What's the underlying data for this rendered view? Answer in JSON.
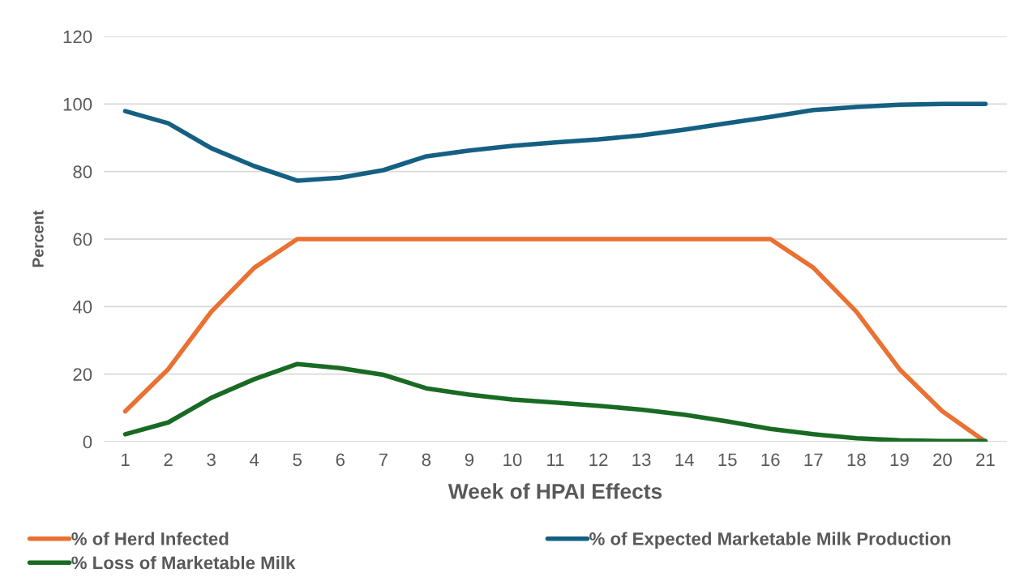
{
  "chart_data": {
    "type": "line",
    "xlabel": "Week of HPAI Effects",
    "ylabel": "Percent",
    "categories": [
      "1",
      "2",
      "3",
      "4",
      "5",
      "6",
      "7",
      "8",
      "9",
      "10",
      "11",
      "12",
      "13",
      "14",
      "15",
      "16",
      "17",
      "18",
      "19",
      "20",
      "21"
    ],
    "series": [
      {
        "name": "% of Herd Infected",
        "color": "#e97132",
        "values": [
          9,
          21.5,
          38.5,
          51.5,
          60,
          60,
          60,
          60,
          60,
          60,
          60,
          60,
          60,
          60,
          60,
          60,
          51.5,
          38.5,
          21.5,
          9,
          0
        ]
      },
      {
        "name": "% Loss of Marketable Milk",
        "color": "#196b24",
        "values": [
          2.2,
          5.7,
          13,
          18.5,
          23,
          21.8,
          19.8,
          15.8,
          13.9,
          12.5,
          11.6,
          10.6,
          9.5,
          8,
          6,
          3.8,
          2.2,
          1,
          0.4,
          0.2,
          0.2
        ]
      },
      {
        "name": "% of Expected Marketable Milk Production",
        "color": "#156082",
        "values": [
          97.9,
          94.3,
          86.9,
          81.6,
          77.3,
          78.2,
          80.4,
          84.5,
          86.2,
          87.6,
          88.6,
          89.5,
          90.7,
          92.4,
          94.3,
          96.2,
          98.2,
          99.1,
          99.8,
          100,
          100
        ]
      }
    ],
    "ylim": [
      0,
      120
    ],
    "yticks": [
      0,
      20,
      40,
      60,
      80,
      100,
      120
    ],
    "grid": "y",
    "legend": "bottom",
    "marker": "none",
    "line_style": "solid"
  }
}
